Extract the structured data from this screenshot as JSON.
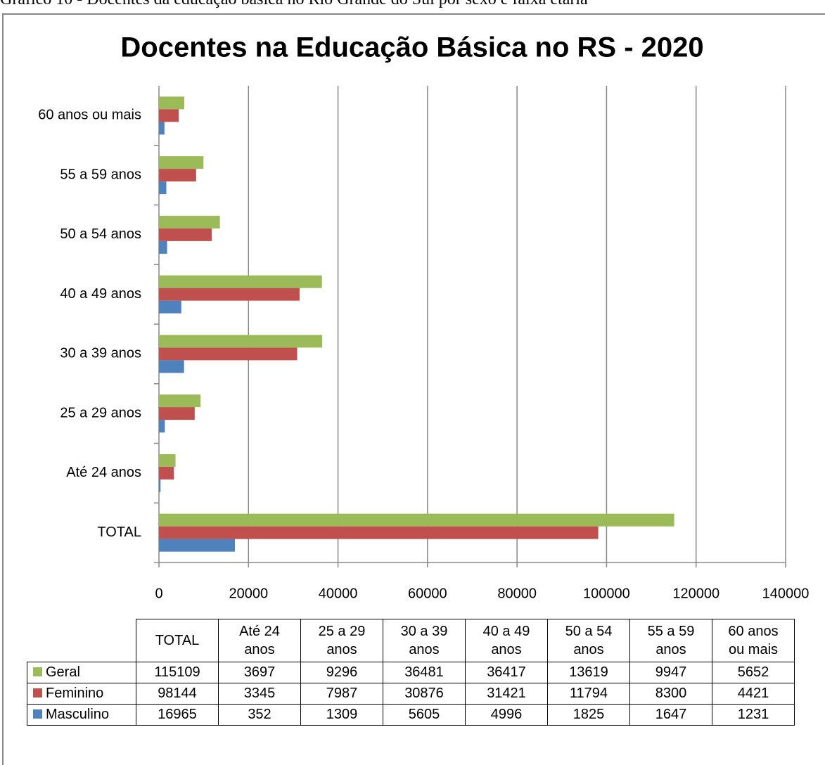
{
  "caption": "Gráfico 10 - Docentes da educação básica no Rio Grande do Sul por sexo e faixa etária",
  "chart_data": {
    "type": "bar",
    "orientation": "horizontal",
    "title": "Docentes na Educação Básica no RS - 2020",
    "categories": [
      "TOTAL",
      "Até 24 anos",
      "25 a 29 anos",
      "30 a 39 anos",
      "40 a 49 anos",
      "50 a 54 anos",
      "55 a 59 anos",
      "60 anos ou mais"
    ],
    "series": [
      {
        "name": "Geral",
        "color": "#9bbb59",
        "values": [
          115109,
          3697,
          9296,
          36481,
          36417,
          13619,
          9947,
          5652
        ]
      },
      {
        "name": "Feminino",
        "color": "#c0504d",
        "values": [
          98144,
          3345,
          7987,
          30876,
          31421,
          11794,
          8300,
          4421
        ]
      },
      {
        "name": "Masculino",
        "color": "#4f81bd",
        "values": [
          16965,
          352,
          1309,
          5605,
          4996,
          1825,
          1647,
          1231
        ]
      }
    ],
    "xlim": [
      0,
      140000
    ],
    "xticks": [
      0,
      20000,
      40000,
      60000,
      80000,
      100000,
      120000,
      140000
    ],
    "grid": true,
    "legend": "data-table"
  }
}
